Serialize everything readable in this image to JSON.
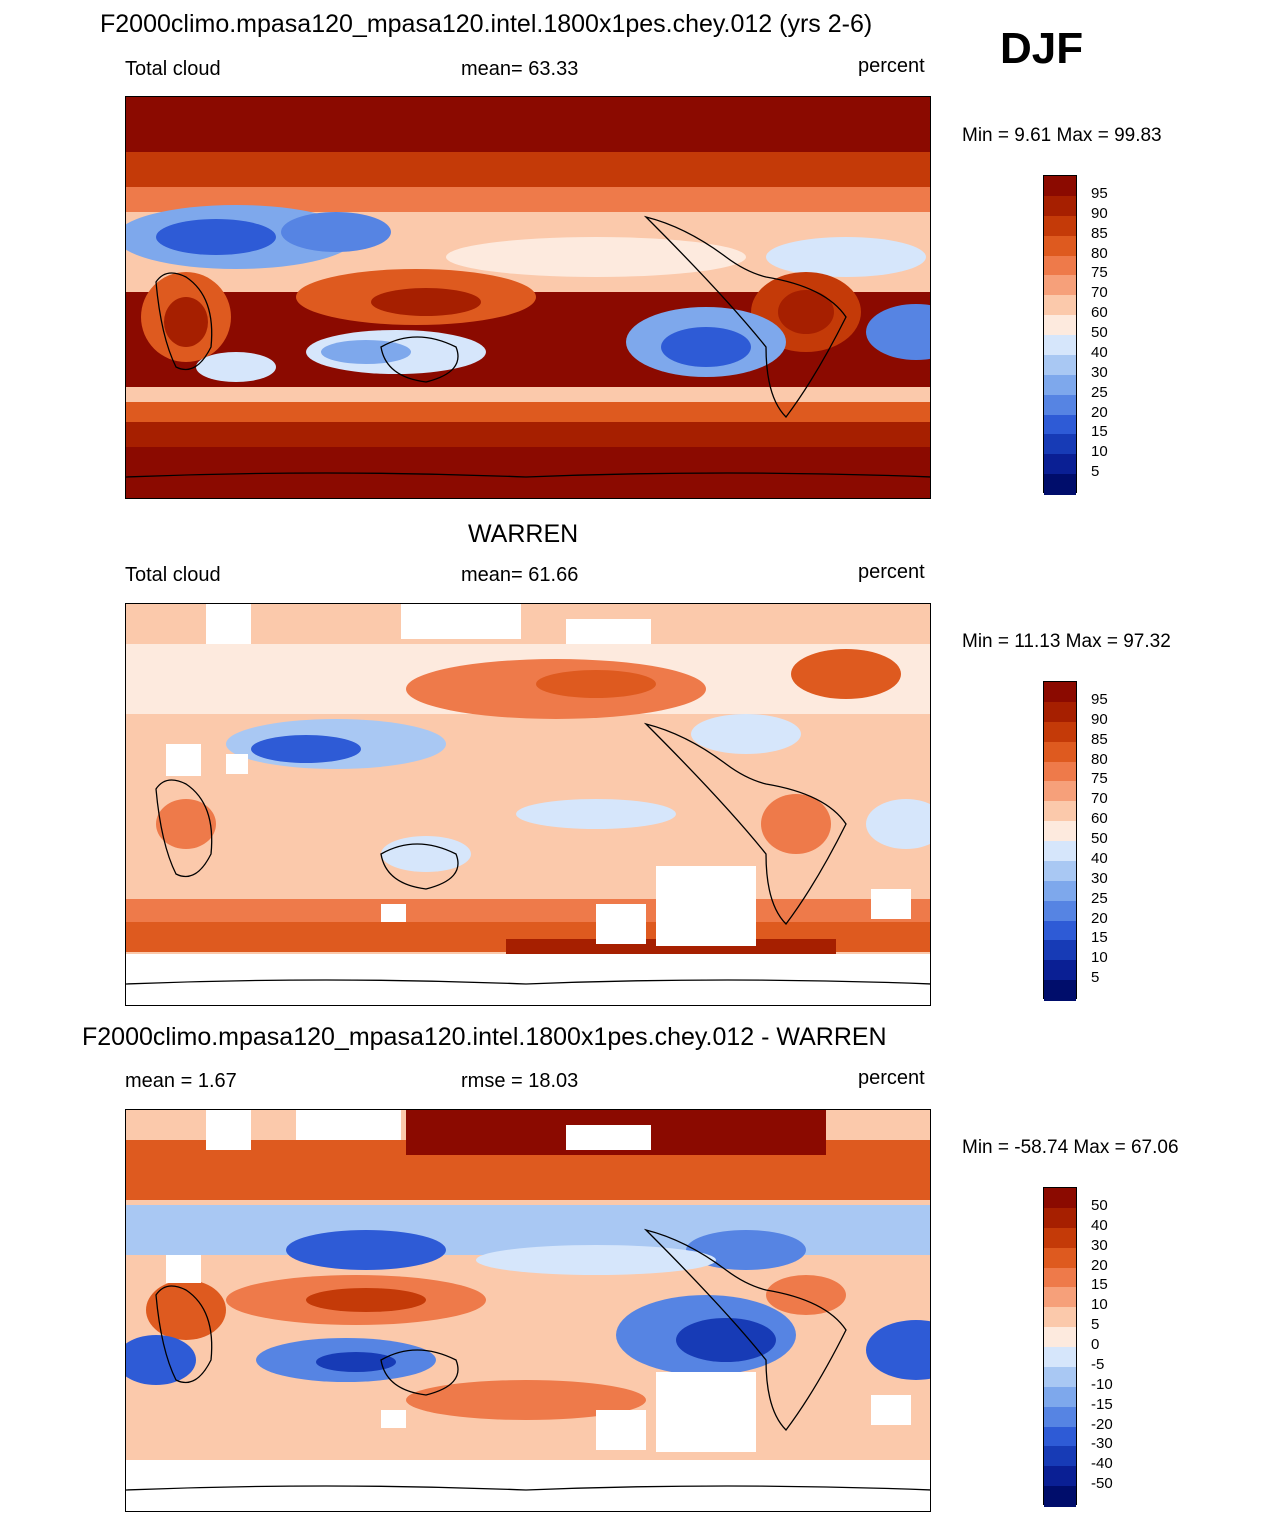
{
  "season": "DJF",
  "panels": [
    {
      "title": "F2000climo.mpasa120_mpasa120.intel.1800x1pes.chey.012 (yrs 2-6)",
      "left_label": "Total cloud",
      "center_label": "mean=  63.33",
      "right_label": "percent",
      "minmax": "Min =   9.61 Max =  99.83",
      "levels": [
        "95",
        "90",
        "85",
        "80",
        "75",
        "70",
        "60",
        "50",
        "40",
        "30",
        "25",
        "20",
        "15",
        "10",
        "5"
      ]
    },
    {
      "title": "WARREN",
      "left_label": "Total cloud",
      "center_label": "mean=  61.66",
      "right_label": "percent",
      "minmax": "Min =  11.13 Max =  97.32",
      "levels": [
        "95",
        "90",
        "85",
        "80",
        "75",
        "70",
        "60",
        "50",
        "40",
        "30",
        "25",
        "20",
        "15",
        "10",
        "5"
      ]
    },
    {
      "title": "F2000climo.mpasa120_mpasa120.intel.1800x1pes.chey.012 - WARREN",
      "left_label": "mean =   1.67",
      "center_label": "rmse =  18.03",
      "right_label": "percent",
      "minmax": "Min = -58.74 Max =  67.06",
      "levels": [
        "50",
        "40",
        "30",
        "20",
        "15",
        "10",
        "5",
        "0",
        "-5",
        "-10",
        "-15",
        "-20",
        "-30",
        "-40",
        "-50"
      ]
    }
  ],
  "colormap": [
    "#8b0a00",
    "#a61f00",
    "#c43a08",
    "#de5a1f",
    "#ee7a4a",
    "#f6a07a",
    "#fbc9ab",
    "#fdeade",
    "#d6e6fb",
    "#a9c8f3",
    "#7ea8ec",
    "#5684e3",
    "#2e5bd6",
    "#173bb6",
    "#0a1f94",
    "#000d6b"
  ]
}
